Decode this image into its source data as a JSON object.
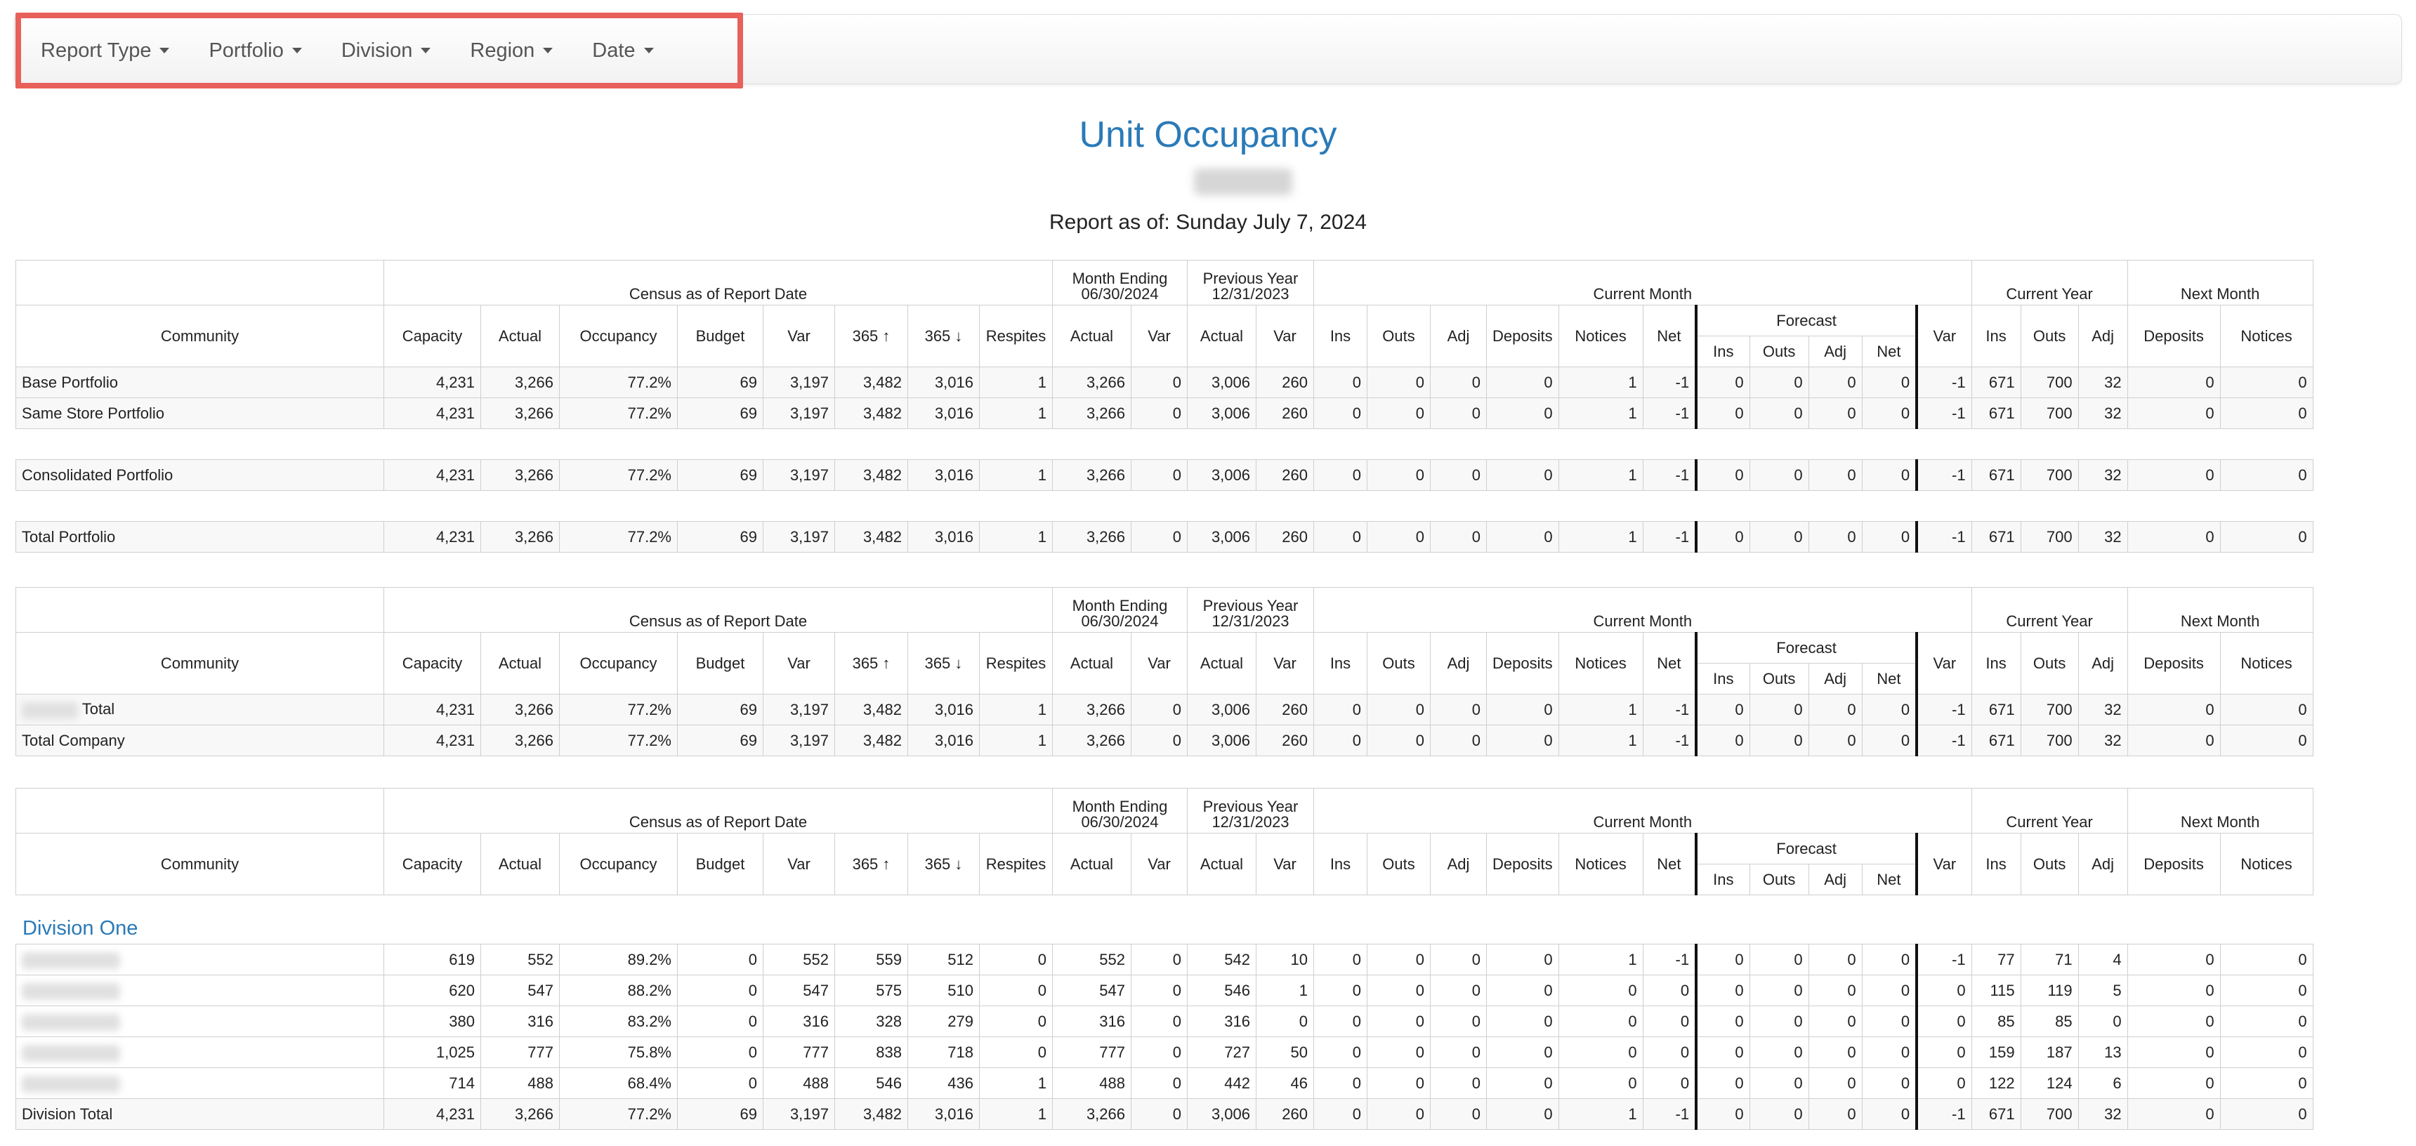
{
  "filters": [
    "Report Type",
    "Portfolio",
    "Division",
    "Region",
    "Date"
  ],
  "report": {
    "title": "Unit Occupancy",
    "as_of": "Report as of: Sunday July 7, 2024"
  },
  "headers": {
    "census": "Census as of Report Date",
    "month_ending_1": "Month Ending",
    "month_ending_2": "06/30/2024",
    "prev_year_1": "Previous Year",
    "prev_year_2": "12/31/2023",
    "current_month": "Current Month",
    "current_year": "Current Year",
    "next_month": "Next Month",
    "forecast": "Forecast",
    "community": "Community",
    "capacity": "Capacity",
    "actual": "Actual",
    "occupancy": "Occupancy",
    "budget": "Budget",
    "var": "Var",
    "d365": "365",
    "respites": "Respites",
    "ins": "Ins",
    "outs": "Outs",
    "adj": "Adj",
    "deposits": "Deposits",
    "notices": "Notices",
    "net": "Net"
  },
  "table1_rows": [
    {
      "name": "Base Portfolio",
      "v": [
        "4,231",
        "3,266",
        "77.2%",
        "69",
        "3,197",
        "3,482",
        "3,016",
        "1",
        "3,266",
        "0",
        "3,006",
        "260",
        "0",
        "0",
        "0",
        "0",
        "1",
        "-1",
        "0",
        "0",
        "0",
        "0",
        "-1",
        "671",
        "700",
        "32",
        "0",
        "0"
      ]
    },
    {
      "name": "Same Store Portfolio",
      "v": [
        "4,231",
        "3,266",
        "77.2%",
        "69",
        "3,197",
        "3,482",
        "3,016",
        "1",
        "3,266",
        "0",
        "3,006",
        "260",
        "0",
        "0",
        "0",
        "0",
        "1",
        "-1",
        "0",
        "0",
        "0",
        "0",
        "-1",
        "671",
        "700",
        "32",
        "0",
        "0"
      ]
    },
    {
      "name": "Consolidated Portfolio",
      "v": [
        "4,231",
        "3,266",
        "77.2%",
        "69",
        "3,197",
        "3,482",
        "3,016",
        "1",
        "3,266",
        "0",
        "3,006",
        "260",
        "0",
        "0",
        "0",
        "0",
        "1",
        "-1",
        "0",
        "0",
        "0",
        "0",
        "-1",
        "671",
        "700",
        "32",
        "0",
        "0"
      ]
    },
    {
      "name": "Total Portfolio",
      "v": [
        "4,231",
        "3,266",
        "77.2%",
        "69",
        "3,197",
        "3,482",
        "3,016",
        "1",
        "3,266",
        "0",
        "3,006",
        "260",
        "0",
        "0",
        "0",
        "0",
        "1",
        "-1",
        "0",
        "0",
        "0",
        "0",
        "-1",
        "671",
        "700",
        "32",
        "0",
        "0"
      ]
    }
  ],
  "table2_rows": [
    {
      "name": "Total",
      "v": [
        "4,231",
        "3,266",
        "77.2%",
        "69",
        "3,197",
        "3,482",
        "3,016",
        "1",
        "3,266",
        "0",
        "3,006",
        "260",
        "0",
        "0",
        "0",
        "0",
        "1",
        "-1",
        "0",
        "0",
        "0",
        "0",
        "-1",
        "671",
        "700",
        "32",
        "0",
        "0"
      ]
    },
    {
      "name": "Total Company",
      "v": [
        "4,231",
        "3,266",
        "77.2%",
        "69",
        "3,197",
        "3,482",
        "3,016",
        "1",
        "3,266",
        "0",
        "3,006",
        "260",
        "0",
        "0",
        "0",
        "0",
        "1",
        "-1",
        "0",
        "0",
        "0",
        "0",
        "-1",
        "671",
        "700",
        "32",
        "0",
        "0"
      ]
    }
  ],
  "division": {
    "heading": "Division One",
    "rows": [
      {
        "v": [
          "619",
          "552",
          "89.2%",
          "0",
          "552",
          "559",
          "512",
          "0",
          "552",
          "0",
          "542",
          "10",
          "0",
          "0",
          "0",
          "0",
          "1",
          "-1",
          "0",
          "0",
          "0",
          "0",
          "-1",
          "77",
          "71",
          "4",
          "0",
          "0"
        ]
      },
      {
        "v": [
          "620",
          "547",
          "88.2%",
          "0",
          "547",
          "575",
          "510",
          "0",
          "547",
          "0",
          "546",
          "1",
          "0",
          "0",
          "0",
          "0",
          "0",
          "0",
          "0",
          "0",
          "0",
          "0",
          "0",
          "115",
          "119",
          "5",
          "0",
          "0"
        ]
      },
      {
        "v": [
          "380",
          "316",
          "83.2%",
          "0",
          "316",
          "328",
          "279",
          "0",
          "316",
          "0",
          "316",
          "0",
          "0",
          "0",
          "0",
          "0",
          "0",
          "0",
          "0",
          "0",
          "0",
          "0",
          "0",
          "85",
          "85",
          "0",
          "0",
          "0"
        ]
      },
      {
        "v": [
          "1,025",
          "777",
          "75.8%",
          "0",
          "777",
          "838",
          "718",
          "0",
          "777",
          "0",
          "727",
          "50",
          "0",
          "0",
          "0",
          "0",
          "0",
          "0",
          "0",
          "0",
          "0",
          "0",
          "0",
          "159",
          "187",
          "13",
          "0",
          "0"
        ]
      },
      {
        "v": [
          "714",
          "488",
          "68.4%",
          "0",
          "488",
          "546",
          "436",
          "1",
          "488",
          "0",
          "442",
          "46",
          "0",
          "0",
          "0",
          "0",
          "0",
          "0",
          "0",
          "0",
          "0",
          "0",
          "0",
          "122",
          "124",
          "6",
          "0",
          "0"
        ]
      }
    ],
    "total": {
      "name": "Division Total",
      "v": [
        "4,231",
        "3,266",
        "77.2%",
        "69",
        "3,197",
        "3,482",
        "3,016",
        "1",
        "3,266",
        "0",
        "3,006",
        "260",
        "0",
        "0",
        "0",
        "0",
        "1",
        "-1",
        "0",
        "0",
        "0",
        "0",
        "-1",
        "671",
        "700",
        "32",
        "0",
        "0"
      ]
    }
  }
}
